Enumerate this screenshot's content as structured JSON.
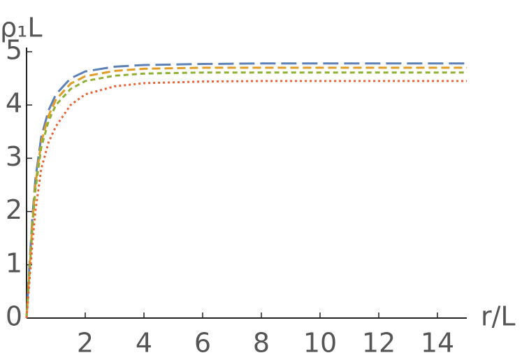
{
  "chart_data": {
    "type": "line",
    "xlabel": "r/L",
    "ylabel": "ρ₁L",
    "x": [
      0,
      0.1,
      0.2,
      0.3,
      0.5,
      0.75,
      1,
      1.5,
      2,
      3,
      4,
      6,
      8,
      10,
      12,
      14,
      15
    ],
    "series": [
      {
        "color": "#5e81b5",
        "dash": "22,8",
        "values": [
          0,
          1.0,
          1.9,
          2.6,
          3.4,
          3.9,
          4.2,
          4.5,
          4.63,
          4.72,
          4.75,
          4.77,
          4.78,
          4.78,
          4.78,
          4.78,
          4.78
        ]
      },
      {
        "color": "#e19c24",
        "dash": "12,6",
        "values": [
          0,
          0.9,
          1.8,
          2.5,
          3.3,
          3.8,
          4.1,
          4.4,
          4.54,
          4.64,
          4.68,
          4.7,
          4.7,
          4.7,
          4.7,
          4.7,
          4.7
        ]
      },
      {
        "color": "#8fb032",
        "dash": "7,5",
        "values": [
          0,
          0.85,
          1.7,
          2.4,
          3.2,
          3.7,
          4.0,
          4.3,
          4.45,
          4.55,
          4.59,
          4.61,
          4.61,
          4.61,
          4.61,
          4.61,
          4.61
        ]
      },
      {
        "color": "#eb6235",
        "dash": "3,4",
        "values": [
          0,
          0.7,
          1.4,
          2.0,
          2.8,
          3.3,
          3.6,
          4.0,
          4.2,
          4.35,
          4.41,
          4.44,
          4.45,
          4.45,
          4.45,
          4.45,
          4.45
        ]
      }
    ],
    "xlim": [
      0,
      15
    ],
    "xticks": [
      2,
      4,
      6,
      8,
      10,
      12,
      14
    ],
    "ylim": [
      0,
      5
    ],
    "yticks": [
      0,
      1,
      2,
      3,
      4,
      5
    ]
  }
}
